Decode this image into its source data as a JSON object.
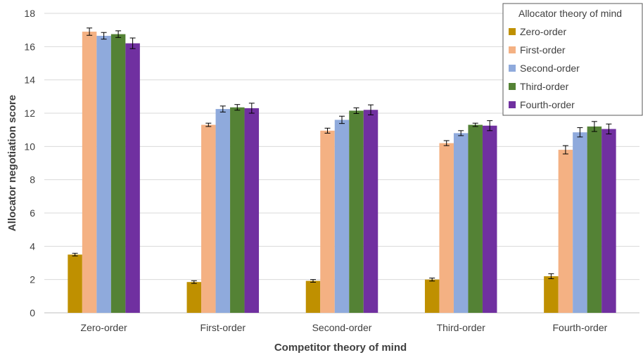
{
  "chart_data": {
    "type": "bar",
    "xlabel": "Competitor theory of mind",
    "ylabel": "Allocator negotiation score",
    "ylim": [
      0,
      18
    ],
    "yticks": [
      0,
      2,
      4,
      6,
      8,
      10,
      12,
      14,
      16,
      18
    ],
    "grid": true,
    "legend_title": "Allocator theory of mind",
    "legend_position": "top-right",
    "categories": [
      "Zero-order",
      "First-order",
      "Second-order",
      "Third-order",
      "Fourth-order"
    ],
    "series": [
      {
        "name": "Zero-order",
        "color": "#BF9000",
        "values": [
          3.5,
          1.85,
          1.92,
          2.0,
          2.2
        ],
        "errors": [
          0.08,
          0.08,
          0.08,
          0.09,
          0.15
        ]
      },
      {
        "name": "First-order",
        "color": "#F4B183",
        "values": [
          16.9,
          11.3,
          10.95,
          10.2,
          9.8
        ],
        "errors": [
          0.22,
          0.1,
          0.15,
          0.15,
          0.25
        ]
      },
      {
        "name": "Second-order",
        "color": "#8FAADC",
        "values": [
          16.65,
          12.25,
          11.6,
          10.8,
          10.85
        ],
        "errors": [
          0.2,
          0.18,
          0.22,
          0.15,
          0.28
        ]
      },
      {
        "name": "Third-order",
        "color": "#548235",
        "values": [
          16.75,
          12.35,
          12.15,
          11.3,
          11.2
        ],
        "errors": [
          0.2,
          0.17,
          0.17,
          0.1,
          0.3
        ]
      },
      {
        "name": "Fourth-order",
        "color": "#7030A0",
        "values": [
          16.2,
          12.3,
          12.2,
          11.25,
          11.05
        ],
        "errors": [
          0.32,
          0.3,
          0.3,
          0.3,
          0.3
        ]
      }
    ]
  }
}
